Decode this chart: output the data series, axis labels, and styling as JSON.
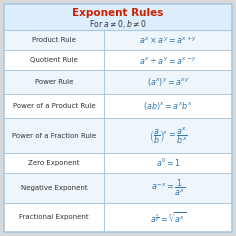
{
  "title": "Exponent Rules",
  "subtitle": "For $a \\neq 0, b \\neq 0$",
  "title_color": "#cc2200",
  "subtitle_color": "#333333",
  "header_bg": "#ddeeff",
  "row_bg": "#ddeeff",
  "row_bg_alt": "#eef5fb",
  "border_color": "#aac8e0",
  "outer_bg": "#d8d8d8",
  "rows": [
    [
      "Product Rule",
      "$a^x \\times a^y = a^{x+y}$"
    ],
    [
      "Quotient Rule",
      "$a^x \\div a^y = a^{x-y}$"
    ],
    [
      "Power Rule",
      "$(a^x)^y = a^{xy}$"
    ],
    [
      "Power of a Product Rule",
      "$(ab)^x = a^x b^x$"
    ],
    [
      "Power of a Fraction Rule",
      "$\\left(\\dfrac{a}{b}\\right)^{\\!x} = \\dfrac{a^x}{b^x}$"
    ],
    [
      "Zero Exponent",
      "$a^0 = 1$"
    ],
    [
      "Negative Exponent",
      "$a^{-x} = \\dfrac{1}{a^x}$"
    ],
    [
      "Fractional Exponent",
      "$a^{\\frac{x}{y}} = \\sqrt[y]{a^x}$"
    ]
  ],
  "col_split": 0.44,
  "figsize": [
    2.36,
    2.36
  ],
  "dpi": 100,
  "formula_color": "#3377aa",
  "name_color": "#333333",
  "name_fontsize": 5.0,
  "formula_fontsize": 5.8
}
